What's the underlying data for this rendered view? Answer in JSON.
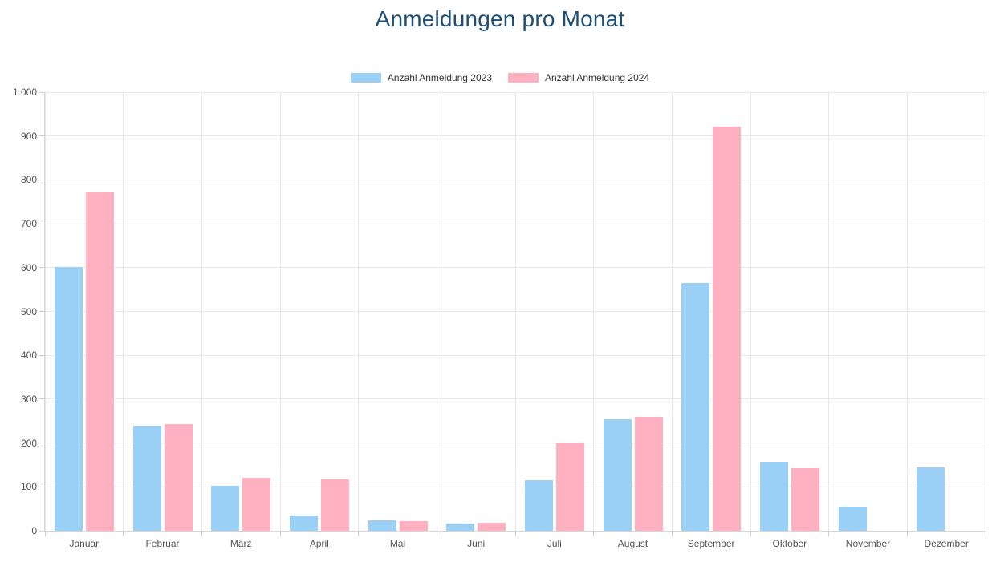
{
  "title": "Anmeldungen pro Monat",
  "title_color": "#1d4e74",
  "chart_data": {
    "type": "bar",
    "title": "Anmeldungen pro Monat",
    "xlabel": "",
    "ylabel": "",
    "ylim": [
      0,
      1000
    ],
    "grid": true,
    "legend_position": "top",
    "categories": [
      "Januar",
      "Februar",
      "März",
      "April",
      "Mai",
      "Juni",
      "Juli",
      "August",
      "September",
      "Oktober",
      "November",
      "Dezember"
    ],
    "series": [
      {
        "name": "Anzahl Anmeldung 2023",
        "color": "#9ad0f5",
        "values": [
          602,
          240,
          102,
          35,
          24,
          17,
          115,
          255,
          565,
          158,
          54,
          145
        ]
      },
      {
        "name": "Anzahl Anmeldung 2024",
        "color": "#ffb1c1",
        "values": [
          772,
          244,
          121,
          117,
          22,
          19,
          202,
          260,
          922,
          143,
          0,
          0
        ]
      }
    ],
    "y_ticks": [
      {
        "value": 1000,
        "label": "1.000"
      },
      {
        "value": 900,
        "label": "900"
      },
      {
        "value": 800,
        "label": "800"
      },
      {
        "value": 700,
        "label": "700"
      },
      {
        "value": 600,
        "label": "600"
      },
      {
        "value": 500,
        "label": "500"
      },
      {
        "value": 400,
        "label": "400"
      },
      {
        "value": 300,
        "label": "300"
      },
      {
        "value": 200,
        "label": "200"
      },
      {
        "value": 100,
        "label": "100"
      },
      {
        "value": 0,
        "label": "0"
      }
    ]
  },
  "axis_style": {
    "grid_color": "#e8e8e8",
    "border_color": "#d6d6d6",
    "tick_mark_color": "#cfcfcf",
    "tick_label_color": "#545454"
  }
}
